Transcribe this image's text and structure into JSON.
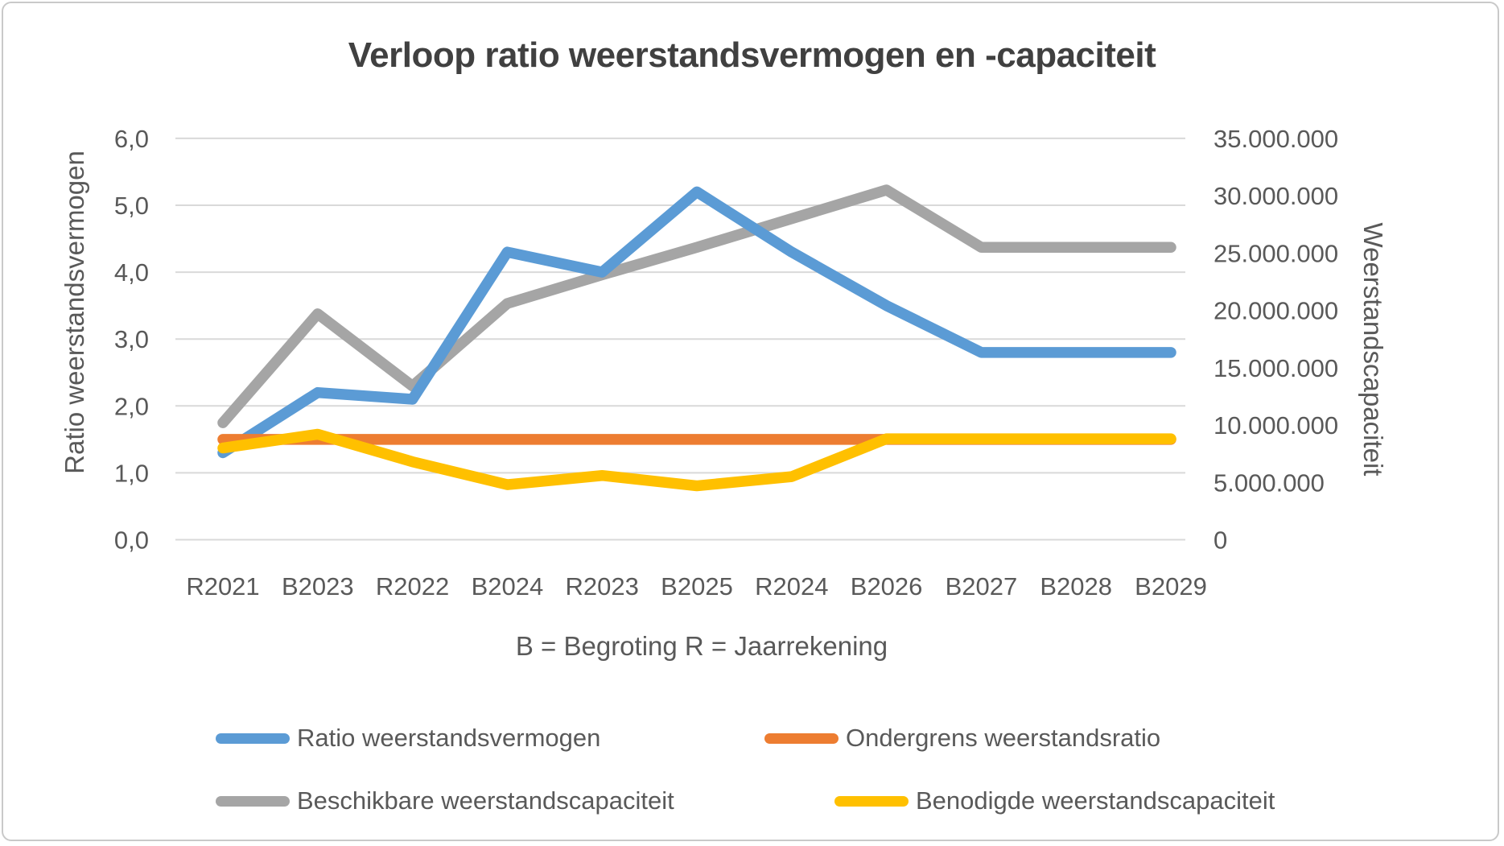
{
  "chart_data": {
    "type": "line",
    "title": "Verloop ratio weerstandsvermogen en -capaciteit",
    "x_axis_title": "B = Begroting R = Jaarrekening",
    "left_axis_title": "Ratio weerstandsvermogen",
    "right_axis_title": "Weerstandscapaciteit",
    "categories": [
      "R2021",
      "B2023",
      "R2022",
      "B2024",
      "R2023",
      "B2025",
      "R2024",
      "B2026",
      "B2027",
      "B2028",
      "B2029"
    ],
    "left_axis": {
      "min": 0,
      "max": 6,
      "tick_step": 1,
      "tick_labels": [
        "0,0",
        "1,0",
        "2,0",
        "3,0",
        "4,0",
        "5,0",
        "6,0"
      ]
    },
    "right_axis": {
      "min": 0,
      "max": 35000000,
      "tick_step": 5000000,
      "tick_labels": [
        "0",
        "5.000.000",
        "10.000.000",
        "15.000.000",
        "20.000.000",
        "25.000.000",
        "30.000.000",
        "35.000.000"
      ]
    },
    "grid": true,
    "legend_position": "bottom",
    "series": [
      {
        "name": "Ratio weerstandsvermogen",
        "color": "#5B9BD5",
        "axis": "left",
        "values": [
          1.3,
          2.2,
          2.1,
          4.3,
          4.0,
          5.2,
          4.3,
          3.5,
          2.8,
          2.8,
          2.8
        ]
      },
      {
        "name": "Ondergrens weerstandsratio",
        "color": "#ED7D31",
        "axis": "left",
        "values": [
          1.5,
          1.5,
          1.5,
          1.5,
          1.5,
          1.5,
          1.5,
          1.5,
          1.5,
          1.5,
          1.5
        ]
      },
      {
        "name": "Beschikbare weerstandscapaciteit",
        "color": "#A5A5A5",
        "axis": "right",
        "values": [
          10200000,
          19700000,
          13400000,
          20600000,
          23100000,
          25500000,
          28000000,
          30500000,
          25500000,
          25500000,
          25500000
        ]
      },
      {
        "name": "Benodigde weerstandscapaciteit",
        "color": "#FFC000",
        "axis": "right",
        "values": [
          8000000,
          9200000,
          6800000,
          4800000,
          5600000,
          4700000,
          5500000,
          8800000,
          8800000,
          8800000,
          8800000
        ]
      }
    ],
    "draw_order": [
      2,
      0,
      1,
      3
    ],
    "colors": {
      "grid": "#D9D9D9",
      "tick_text": "#595959",
      "title_text": "#404040",
      "frame_border": "#C9C9C9"
    }
  }
}
